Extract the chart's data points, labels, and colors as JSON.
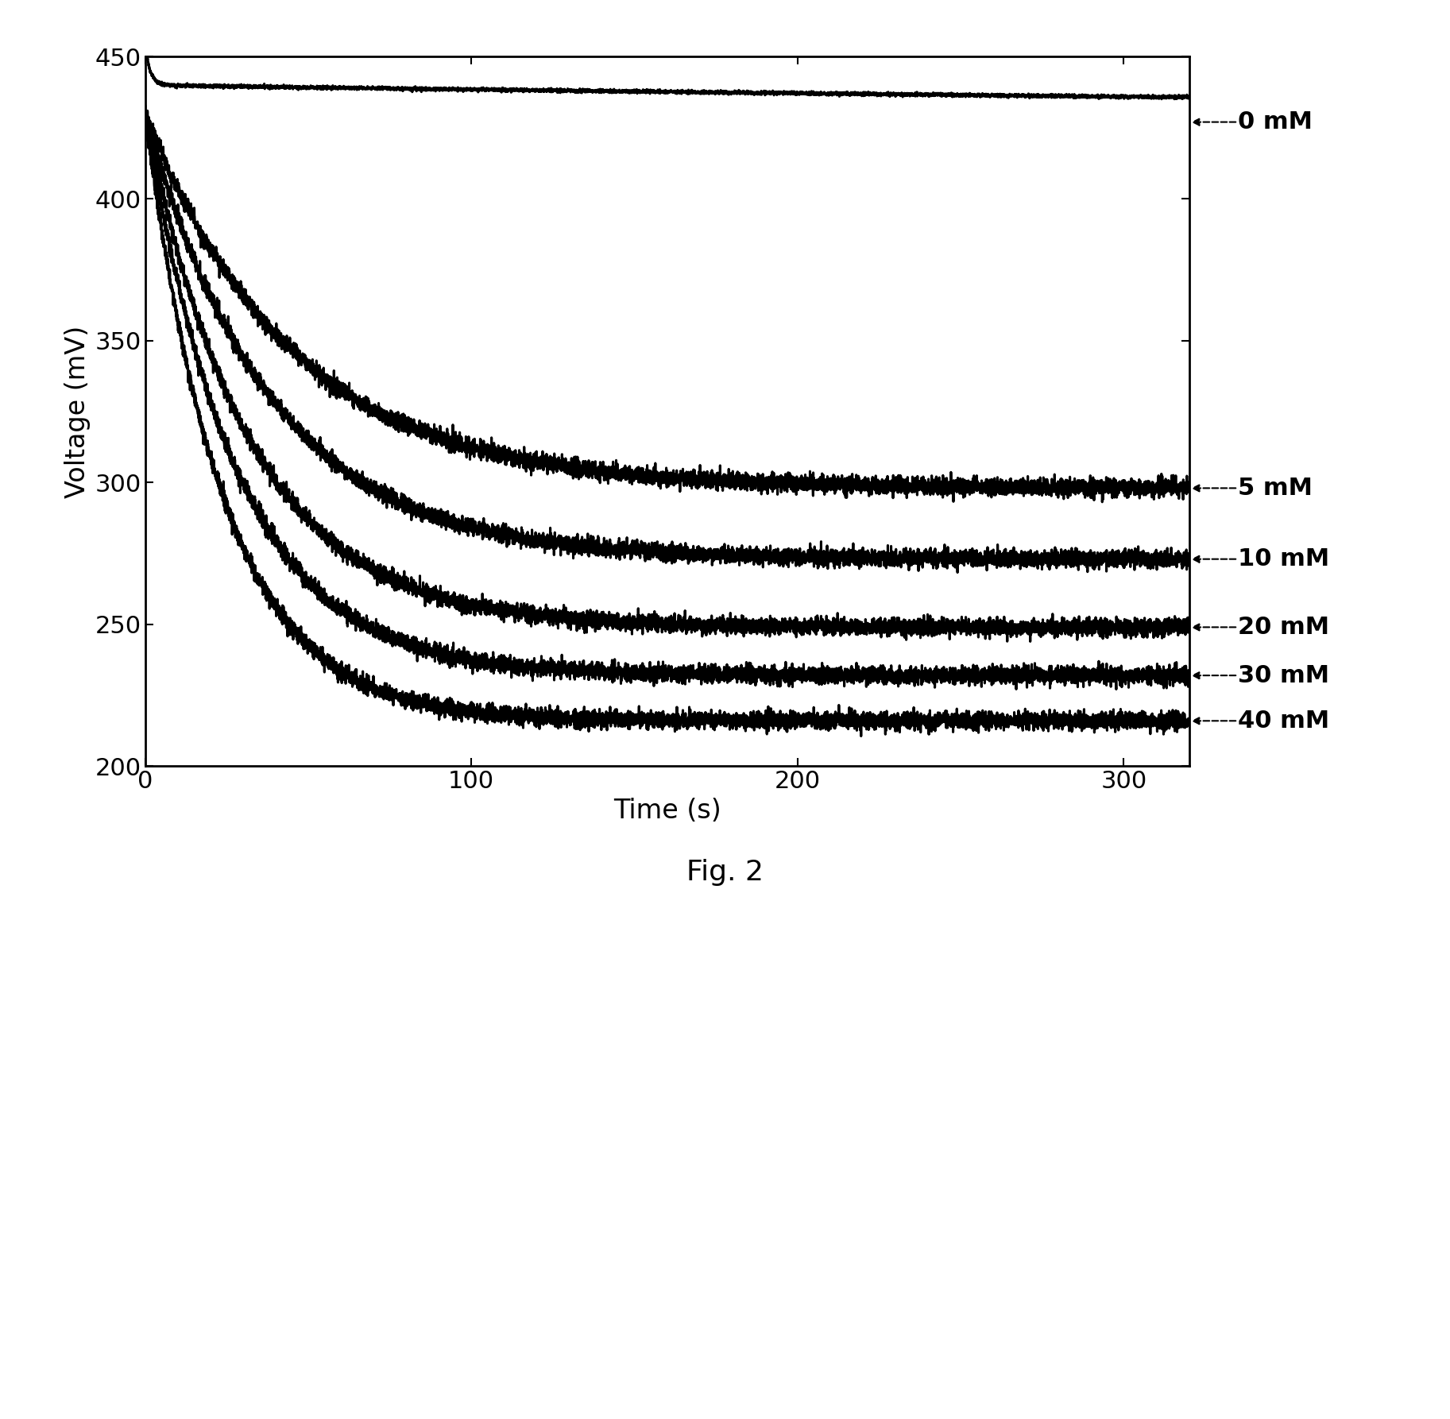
{
  "title": "Fig. 2",
  "xlabel": "Time (s)",
  "ylabel": "Voltage (mV)",
  "xlim": [
    0,
    320
  ],
  "ylim": [
    200,
    450
  ],
  "xticks": [
    0,
    100,
    200,
    300
  ],
  "yticks": [
    200,
    250,
    300,
    350,
    400,
    450
  ],
  "series": [
    {
      "label": "0 mM",
      "v0": 440,
      "v_spike": 440,
      "vf": 427,
      "tau1": 2,
      "tau2": 800,
      "noise": 0.3
    },
    {
      "label": "5 mM",
      "v0": 430,
      "v_spike": 430,
      "vf": 298,
      "tau1": 3,
      "tau2": 45,
      "noise": 1.5
    },
    {
      "label": "10 mM",
      "v0": 430,
      "v_spike": 430,
      "vf": 273,
      "tau1": 3,
      "tau2": 38,
      "noise": 1.5
    },
    {
      "label": "20 mM",
      "v0": 430,
      "v_spike": 430,
      "vf": 249,
      "tau1": 3,
      "tau2": 32,
      "noise": 1.5
    },
    {
      "label": "30 mM",
      "v0": 430,
      "v_spike": 430,
      "vf": 232,
      "tau1": 3,
      "tau2": 28,
      "noise": 1.5
    },
    {
      "label": "40 mM",
      "v0": 430,
      "v_spike": 430,
      "vf": 216,
      "tau1": 3,
      "tau2": 24,
      "noise": 1.5
    }
  ],
  "annotation_y_values": [
    427,
    298,
    273,
    249,
    232,
    216
  ],
  "line_color": "#000000",
  "background_color": "#ffffff",
  "line_width": 2.2,
  "fontsize_labels": 24,
  "fontsize_ticks": 22,
  "fontsize_annotations": 22,
  "fontsize_title": 26
}
